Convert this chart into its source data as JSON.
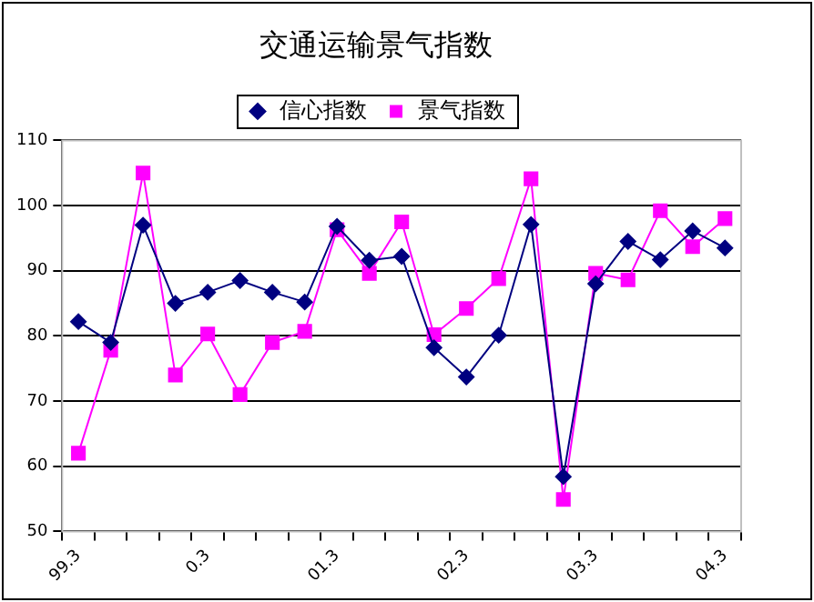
{
  "chart_data": {
    "type": "line",
    "title": "交通运输景气指数",
    "categories": [
      "99.3",
      null,
      null,
      null,
      "0.3",
      null,
      null,
      null,
      "01.3",
      null,
      null,
      null,
      "02.3",
      null,
      null,
      null,
      "03.3",
      null,
      null,
      null,
      "04.3"
    ],
    "series": [
      {
        "name": "信心指数",
        "color": "#000080",
        "marker": "diamond",
        "values": [
          82.2,
          79,
          97,
          85,
          86.7,
          88.5,
          86.7,
          85.2,
          96.8,
          91.6,
          92.2,
          78.2,
          73.7,
          80.1,
          97.1,
          58.4,
          88,
          94.5,
          91.7,
          96.1,
          93.5
        ]
      },
      {
        "name": "景气指数",
        "color": "#ff00ff",
        "marker": "square",
        "values": [
          62,
          77.8,
          105,
          74,
          80.3,
          71,
          79,
          80.7,
          96.3,
          89.6,
          97.5,
          80.2,
          84.2,
          88.8,
          104.1,
          54.9,
          89.6,
          88.6,
          99.2,
          93.7,
          98
        ]
      }
    ],
    "ylim": [
      50,
      110
    ],
    "yticks": [
      50,
      60,
      70,
      80,
      90,
      100,
      110
    ],
    "grid": "y",
    "legend": "top",
    "line_style": "solid"
  }
}
